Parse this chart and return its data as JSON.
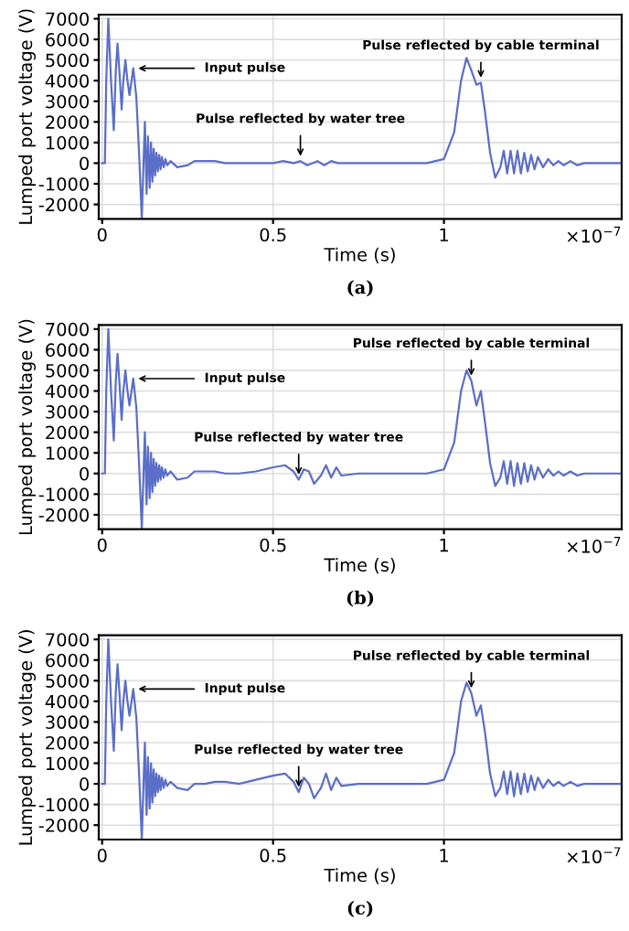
{
  "chart_data": [
    {
      "type": "line",
      "xlabel": "Time (s)",
      "ylabel": "Lumped port voltage (V)",
      "xlim": [
        -0.01,
        1.52
      ],
      "ylim": [
        -2700,
        7200
      ],
      "xticks": [
        0,
        0.5,
        1
      ],
      "yticks": [
        -2000,
        -1000,
        0,
        1000,
        2000,
        3000,
        4000,
        5000,
        6000,
        7000
      ],
      "grid": true,
      "line_style": "solid",
      "annotations": [
        {
          "text": "Input pulse",
          "x": 0.091,
          "y": 4600
        },
        {
          "text": "Pulse reflected by water tree",
          "x": 0.58,
          "y": 100
        },
        {
          "text": "Pulse reflected by cable terminal",
          "x": 1.108,
          "y": 3900
        },
        "×10$^{−7}$",
        "(a)"
      ],
      "series": [
        {
          "color": "#5b6ec8",
          "x": [
            0,
            0.008,
            0.012,
            0.018,
            0.026,
            0.034,
            0.04,
            0.045,
            0.051,
            0.057,
            0.062,
            0.068,
            0.074,
            0.08,
            0.086,
            0.091,
            0.1,
            0.108,
            0.116,
            0.121,
            0.125,
            0.13,
            0.134,
            0.139,
            0.143,
            0.147,
            0.151,
            0.155,
            0.159,
            0.163,
            0.167,
            0.171,
            0.175,
            0.18,
            0.185,
            0.19,
            0.2,
            0.22,
            0.25,
            0.27,
            0.3,
            0.33,
            0.36,
            0.4,
            0.5,
            0.53,
            0.56,
            0.58,
            0.6,
            0.63,
            0.65,
            0.67,
            0.69,
            0.72,
            0.8,
            0.95,
            1.0,
            1.03,
            1.05,
            1.066,
            1.08,
            1.095,
            1.108,
            1.12,
            1.135,
            1.15,
            1.165,
            1.175,
            1.185,
            1.195,
            1.205,
            1.215,
            1.225,
            1.235,
            1.245,
            1.255,
            1.265,
            1.275,
            1.29,
            1.305,
            1.32,
            1.335,
            1.35,
            1.37,
            1.39,
            1.41,
            1.44,
            1.52
          ],
          "values": [
            0,
            0,
            4000,
            7000,
            4000,
            1600,
            4500,
            5800,
            4300,
            2600,
            4000,
            5000,
            4000,
            3300,
            4000,
            4600,
            3200,
            500,
            -2700,
            0,
            2000,
            -1500,
            1300,
            -1200,
            1000,
            -900,
            700,
            -600,
            500,
            -400,
            400,
            -300,
            300,
            -200,
            200,
            -100,
            100,
            -200,
            -100,
            100,
            100,
            100,
            0,
            0,
            0,
            100,
            0,
            100,
            -100,
            100,
            -100,
            100,
            0,
            0,
            0,
            0,
            200,
            1500,
            4000,
            5100,
            4500,
            3800,
            3900,
            2500,
            500,
            -700,
            -200,
            600,
            -500,
            600,
            -500,
            600,
            -500,
            500,
            -400,
            400,
            -300,
            300,
            -200,
            200,
            -100,
            100,
            -100,
            100,
            -100,
            0,
            0,
            0
          ]
        }
      ]
    },
    {
      "type": "line",
      "xlabel": "Time (s)",
      "ylabel": "Lumped port voltage (V)",
      "xlim": [
        -0.01,
        1.52
      ],
      "ylim": [
        -2700,
        7200
      ],
      "xticks": [
        0,
        0.5,
        1
      ],
      "yticks": [
        -2000,
        -1000,
        0,
        1000,
        2000,
        3000,
        4000,
        5000,
        6000,
        7000
      ],
      "grid": true,
      "line_style": "solid",
      "annotations": [
        {
          "text": "Input pulse",
          "x": 0.091,
          "y": 4600
        },
        {
          "text": "Pulse reflected by water tree",
          "x": 0.575,
          "y": -300
        },
        {
          "text": "Pulse reflected by cable terminal",
          "x": 1.08,
          "y": 4500
        },
        "×10$^{−7}$",
        "(b)"
      ],
      "series": [
        {
          "color": "#5b6ec8",
          "x": [
            0,
            0.008,
            0.012,
            0.018,
            0.026,
            0.034,
            0.04,
            0.045,
            0.051,
            0.057,
            0.062,
            0.068,
            0.074,
            0.08,
            0.086,
            0.091,
            0.1,
            0.108,
            0.116,
            0.121,
            0.125,
            0.13,
            0.134,
            0.139,
            0.143,
            0.147,
            0.151,
            0.155,
            0.159,
            0.163,
            0.167,
            0.171,
            0.175,
            0.18,
            0.185,
            0.19,
            0.2,
            0.22,
            0.25,
            0.27,
            0.3,
            0.33,
            0.36,
            0.4,
            0.45,
            0.5,
            0.535,
            0.56,
            0.575,
            0.59,
            0.605,
            0.62,
            0.64,
            0.655,
            0.67,
            0.685,
            0.7,
            0.75,
            0.95,
            1.0,
            1.03,
            1.05,
            1.066,
            1.08,
            1.095,
            1.108,
            1.12,
            1.135,
            1.15,
            1.165,
            1.175,
            1.185,
            1.195,
            1.205,
            1.215,
            1.225,
            1.235,
            1.245,
            1.255,
            1.265,
            1.275,
            1.29,
            1.305,
            1.32,
            1.335,
            1.35,
            1.37,
            1.39,
            1.41,
            1.44,
            1.52
          ],
          "values": [
            0,
            0,
            4000,
            7000,
            4000,
            1600,
            4500,
            5800,
            4300,
            2600,
            4000,
            5000,
            4000,
            3300,
            4000,
            4600,
            3200,
            500,
            -2700,
            0,
            2000,
            -1500,
            1300,
            -1200,
            1000,
            -900,
            700,
            -600,
            500,
            -400,
            400,
            -300,
            300,
            -200,
            200,
            -100,
            100,
            -300,
            -200,
            100,
            100,
            100,
            0,
            0,
            100,
            300,
            400,
            100,
            -300,
            200,
            100,
            -500,
            -100,
            400,
            -200,
            300,
            -100,
            0,
            0,
            200,
            1500,
            4000,
            5000,
            4500,
            3300,
            4000,
            2500,
            500,
            -600,
            -200,
            600,
            -500,
            600,
            -600,
            500,
            -500,
            500,
            -400,
            400,
            -300,
            300,
            -200,
            200,
            -100,
            100,
            -100,
            100,
            -100,
            0,
            0,
            0
          ]
        }
      ]
    },
    {
      "type": "line",
      "xlabel": "Time (s)",
      "ylabel": "Lumped port voltage (V)",
      "xlim": [
        -0.01,
        1.52
      ],
      "ylim": [
        -2700,
        7200
      ],
      "xticks": [
        0,
        0.5,
        1
      ],
      "yticks": [
        -2000,
        -1000,
        0,
        1000,
        2000,
        3000,
        4000,
        5000,
        6000,
        7000
      ],
      "grid": true,
      "line_style": "solid",
      "annotations": [
        {
          "text": "Input pulse",
          "x": 0.091,
          "y": 4600
        },
        {
          "text": "Pulse reflected by water tree",
          "x": 0.575,
          "y": -400
        },
        {
          "text": "Pulse reflected by cable terminal",
          "x": 1.08,
          "y": 4400
        },
        "×10$^{−7}$",
        "(c)"
      ],
      "series": [
        {
          "color": "#5b6ec8",
          "x": [
            0,
            0.008,
            0.012,
            0.018,
            0.026,
            0.034,
            0.04,
            0.045,
            0.051,
            0.057,
            0.062,
            0.068,
            0.074,
            0.08,
            0.086,
            0.091,
            0.1,
            0.108,
            0.116,
            0.121,
            0.125,
            0.13,
            0.134,
            0.139,
            0.143,
            0.147,
            0.151,
            0.155,
            0.159,
            0.163,
            0.167,
            0.171,
            0.175,
            0.18,
            0.185,
            0.19,
            0.2,
            0.22,
            0.25,
            0.27,
            0.3,
            0.33,
            0.36,
            0.4,
            0.45,
            0.5,
            0.535,
            0.56,
            0.575,
            0.59,
            0.605,
            0.62,
            0.64,
            0.655,
            0.67,
            0.685,
            0.7,
            0.75,
            0.95,
            1.0,
            1.03,
            1.05,
            1.066,
            1.08,
            1.095,
            1.108,
            1.12,
            1.135,
            1.15,
            1.165,
            1.175,
            1.185,
            1.195,
            1.205,
            1.215,
            1.225,
            1.235,
            1.245,
            1.255,
            1.265,
            1.275,
            1.29,
            1.305,
            1.32,
            1.335,
            1.35,
            1.37,
            1.39,
            1.41,
            1.44,
            1.52
          ],
          "values": [
            0,
            0,
            4000,
            7000,
            4000,
            1600,
            4500,
            5800,
            4300,
            2600,
            4000,
            5000,
            4000,
            3300,
            4000,
            4600,
            3200,
            500,
            -2700,
            0,
            2000,
            -1500,
            1300,
            -1200,
            1000,
            -900,
            700,
            -600,
            500,
            -400,
            400,
            -300,
            300,
            -200,
            200,
            -100,
            100,
            -200,
            -300,
            0,
            0,
            100,
            100,
            0,
            200,
            400,
            500,
            100,
            -400,
            300,
            0,
            -700,
            -200,
            500,
            -300,
            300,
            -100,
            0,
            0,
            200,
            1500,
            4000,
            4900,
            4400,
            3300,
            3800,
            2500,
            500,
            -600,
            -200,
            600,
            -500,
            600,
            -600,
            500,
            -500,
            500,
            -400,
            400,
            -300,
            300,
            -200,
            200,
            -100,
            100,
            -100,
            100,
            -100,
            0,
            0,
            0
          ]
        }
      ]
    }
  ]
}
